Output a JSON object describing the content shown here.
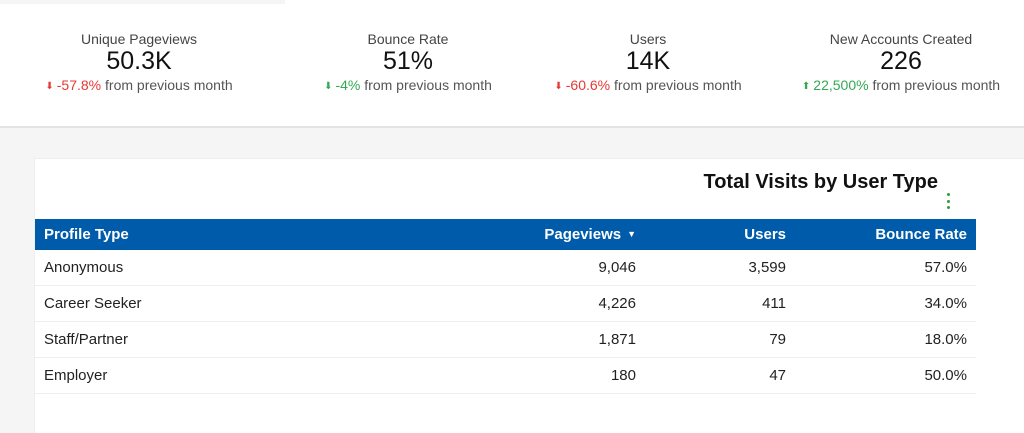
{
  "kpis": [
    {
      "label": "Unique Pageviews",
      "value": "50.3K",
      "arrow": "⬇",
      "direction": "down",
      "change": "-57.8%",
      "suffix": "from previous month"
    },
    {
      "label": "Bounce Rate",
      "value": "51%",
      "arrow": "⬇",
      "direction": "down-good",
      "change": "-4%",
      "suffix": "from previous month"
    },
    {
      "label": "Users",
      "value": "14K",
      "arrow": "⬇",
      "direction": "down",
      "change": "-60.6%",
      "suffix": "from previous month"
    },
    {
      "label": "New Accounts Created",
      "value": "226",
      "arrow": "⬆",
      "direction": "up",
      "change": "22,500%",
      "suffix": "from previous month"
    }
  ],
  "colors": {
    "negative": "#e53935",
    "positive": "#34a853",
    "header": "#005baa",
    "menu": "#2e9e3e"
  },
  "panel": {
    "title": "Total Visits by User Type",
    "menu_icon": "more-vertical-icon",
    "columns": [
      "Profile Type",
      "Pageviews",
      "Users",
      "Bounce Rate"
    ],
    "sort_indicator": "▼",
    "rows": [
      [
        "Anonymous",
        "9,046",
        "3,599",
        "57.0%"
      ],
      [
        "Career Seeker",
        "4,226",
        "411",
        "34.0%"
      ],
      [
        "Staff/Partner",
        "1,871",
        "79",
        "18.0%"
      ],
      [
        "Employer",
        "180",
        "47",
        "50.0%"
      ]
    ]
  }
}
